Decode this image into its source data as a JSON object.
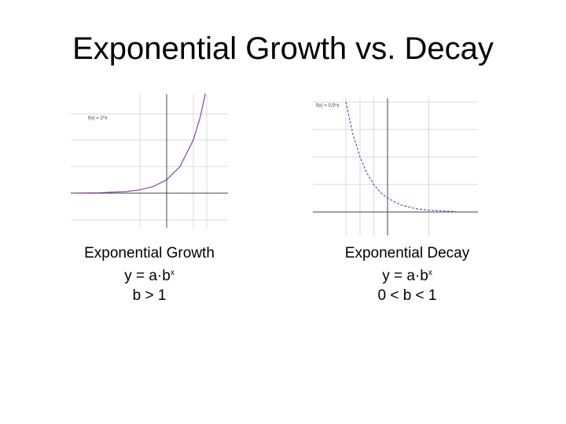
{
  "title": "Exponential Growth vs. Decay",
  "panels": [
    {
      "graph_label": "f(x) = 2^x",
      "name": "Exponential Growth",
      "formula": "y = a·b",
      "exponent": "x",
      "condition": "b > 1"
    },
    {
      "graph_label": "f(x) = 0.5^x",
      "name": "Exponential Decay",
      "formula": "y = a·b",
      "exponent": "x",
      "condition": "0 < b < 1"
    }
  ]
}
